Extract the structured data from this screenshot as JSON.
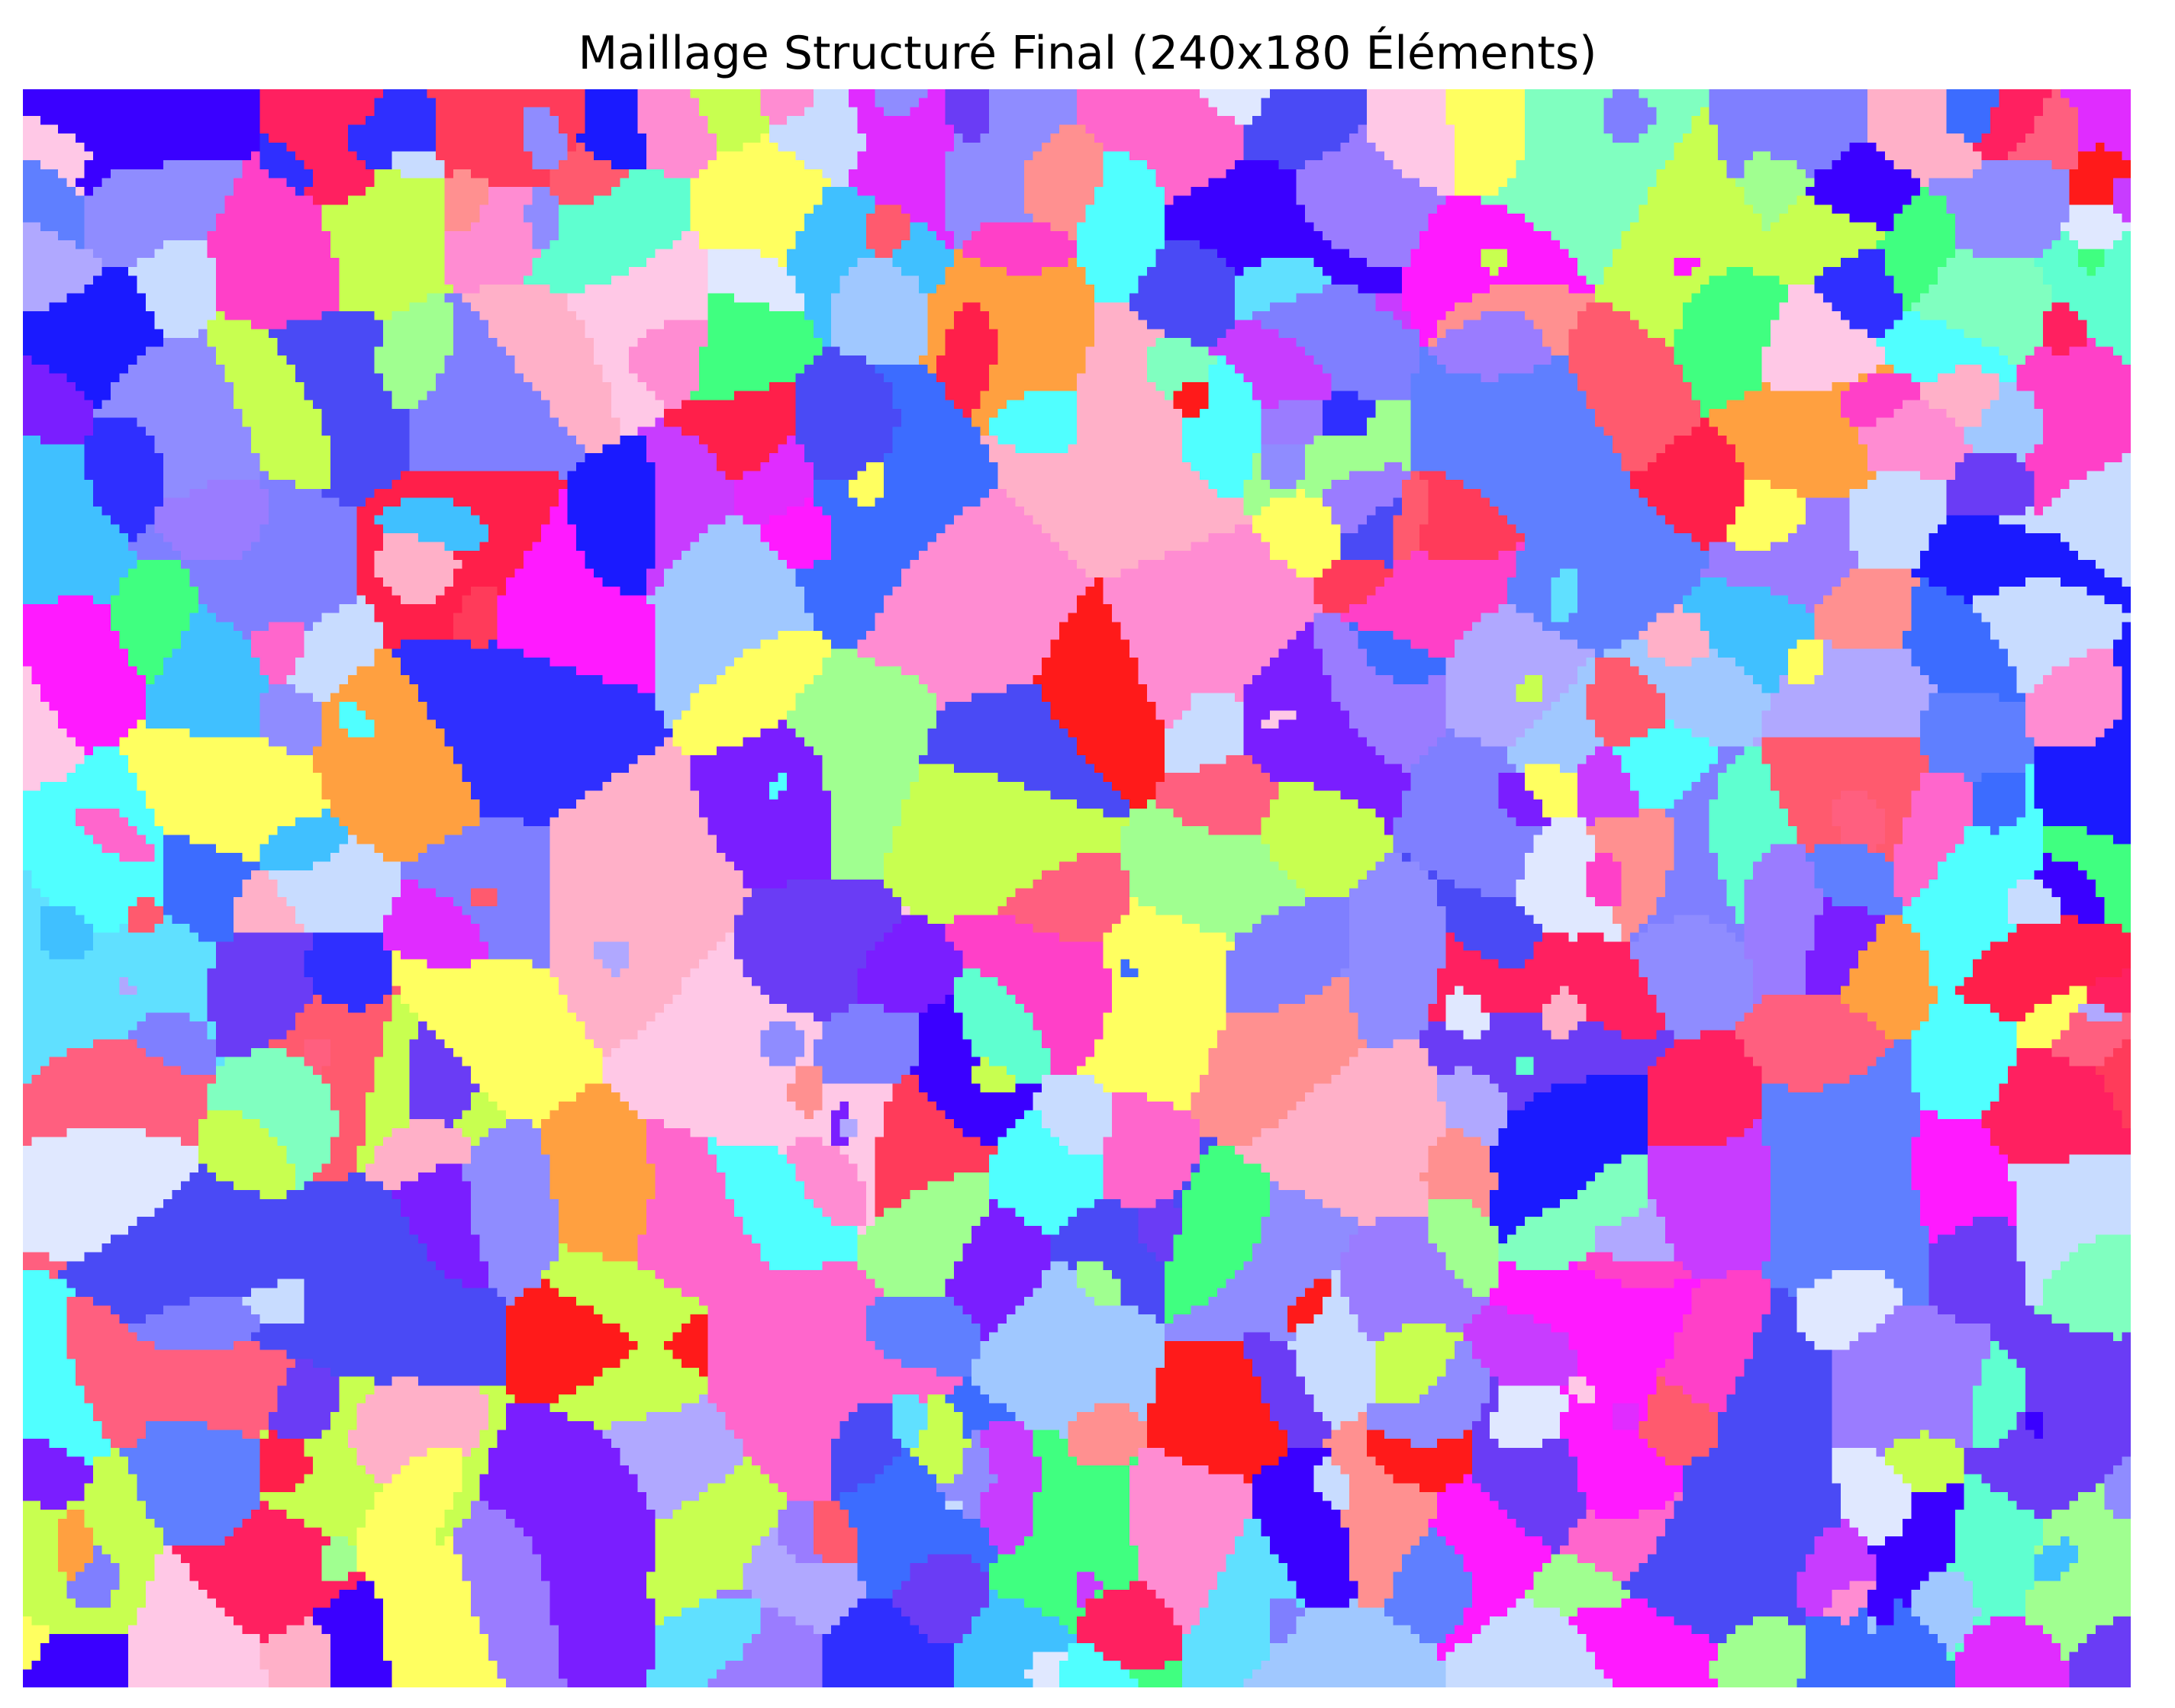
{
  "chart_data": {
    "type": "heatmap",
    "title": "Maillage Structuré Final (240x180 Éléments)",
    "xlabel": "",
    "ylabel": "",
    "grid_columns": 240,
    "grid_rows": 180,
    "axes_visible": false,
    "grid": false,
    "colorbar": false,
    "palette": [
      "#2f2fff",
      "#4a4af5",
      "#6a3cf5",
      "#7a1eff",
      "#3a00ff",
      "#1a1aff",
      "#ff1f4a",
      "#ff3b5a",
      "#ff5a6e",
      "#ff2060",
      "#ff1a1a",
      "#ff5f7f",
      "#ff1aff",
      "#e02cff",
      "#c83cff",
      "#ff40c8",
      "#ff66cc",
      "#ff8cd2",
      "#9a7cff",
      "#b0a8ff",
      "#8f8cff",
      "#7f7fff",
      "#5f7fff",
      "#3c6cff",
      "#a0c8ff",
      "#c8dcff",
      "#e0e8ff",
      "#ffc8e6",
      "#ffb0c8",
      "#ff9090",
      "#5fffd0",
      "#80ffc0",
      "#a0ff90",
      "#40ff80",
      "#60e0ff",
      "#40c0ff",
      "#50ffff",
      "#c8ff50",
      "#ffff60",
      "#ffa040"
    ]
  }
}
